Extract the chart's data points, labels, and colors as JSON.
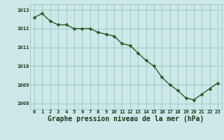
{
  "x": [
    0,
    1,
    2,
    3,
    4,
    5,
    6,
    7,
    8,
    9,
    10,
    11,
    12,
    13,
    14,
    15,
    16,
    17,
    18,
    19,
    20,
    21,
    22,
    23
  ],
  "y": [
    1012.6,
    1012.8,
    1012.4,
    1012.2,
    1012.2,
    1012.0,
    1012.0,
    1012.0,
    1011.8,
    1011.7,
    1011.6,
    1011.2,
    1011.1,
    1010.7,
    1010.3,
    1010.0,
    1009.4,
    1009.0,
    1008.7,
    1008.3,
    1008.2,
    1008.5,
    1008.8,
    1009.1
  ],
  "line_color": "#2d5a27",
  "marker_color": "#2d5a27",
  "bg_color": "#cce8e8",
  "grid_color": "#99bbbb",
  "xlabel": "Graphe pression niveau de la mer (hPa)",
  "xlabel_color": "#1a3a1a",
  "xlim": [
    -0.5,
    23.5
  ],
  "ylim": [
    1007.7,
    1013.3
  ],
  "ytick_values": [
    1008,
    1009,
    1010,
    1011,
    1012,
    1013
  ],
  "ytick_labels": [
    "1008",
    "1009",
    "1010",
    "1011",
    "1012",
    "1013"
  ],
  "xticks": [
    0,
    1,
    2,
    3,
    4,
    5,
    6,
    7,
    8,
    9,
    10,
    11,
    12,
    13,
    14,
    15,
    16,
    17,
    18,
    19,
    20,
    21,
    22,
    23
  ],
  "tick_label_color": "#1a3a1a",
  "tick_label_fontsize": 5.2,
  "xlabel_fontsize": 7.0,
  "line_width": 1.0,
  "marker_size": 2.5
}
